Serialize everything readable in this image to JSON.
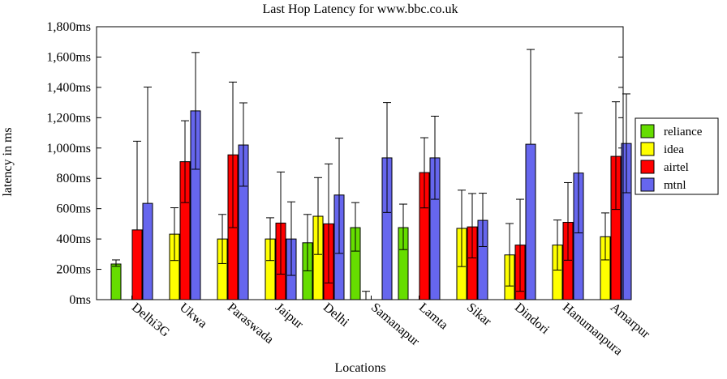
{
  "chart_data": {
    "type": "bar",
    "title": "Last Hop Latency for www.bbc.co.uk",
    "xlabel": "Locations",
    "ylabel": "latency in ms",
    "ylim": [
      0,
      1800
    ],
    "yticks": [
      "0ms",
      "200ms",
      "400ms",
      "600ms",
      "800ms",
      "1,000ms",
      "1,200ms",
      "1,400ms",
      "1,600ms",
      "1,800ms"
    ],
    "ytick_values": [
      0,
      200,
      400,
      600,
      800,
      1000,
      1200,
      1400,
      1600,
      1800
    ],
    "legend_position": "right",
    "categories": [
      "Delhi3G",
      "Ukwa",
      "Paraswada",
      "Jaipur",
      "Delhi",
      "Samanapur",
      "Lamta",
      "Sikar",
      "Dindori",
      "Hanumanpura",
      "Amarpur"
    ],
    "series": [
      {
        "name": "reliance",
        "color": "#66dd00",
        "values": [
          235,
          null,
          null,
          null,
          375,
          475,
          475,
          null,
          null,
          null,
          null
        ],
        "err_low": [
          220,
          null,
          null,
          null,
          190,
          320,
          330,
          null,
          null,
          null,
          null
        ],
        "err_high": [
          262,
          null,
          null,
          null,
          562,
          640,
          630,
          null,
          null,
          null,
          null
        ]
      },
      {
        "name": "idea",
        "color": "#ffff00",
        "values": [
          null,
          432,
          400,
          400,
          550,
          0,
          null,
          470,
          295,
          360,
          415
        ],
        "err_low": [
          null,
          258,
          238,
          258,
          298,
          0,
          null,
          218,
          90,
          195,
          262
        ],
        "err_high": [
          null,
          606,
          562,
          540,
          805,
          55,
          null,
          722,
          502,
          525,
          572
        ]
      },
      {
        "name": "airtel",
        "color": "#ff0000",
        "values": [
          460,
          910,
          955,
          505,
          500,
          null,
          838,
          480,
          360,
          510,
          945
        ],
        "err_low": [
          null,
          640,
          475,
          168,
          110,
          null,
          605,
          275,
          55,
          260,
          595
        ],
        "err_high": [
          1045,
          1180,
          1435,
          842,
          895,
          null,
          1068,
          700,
          662,
          772,
          1305
        ]
      },
      {
        "name": "mtnl",
        "color": "#6666ee",
        "values": [
          635,
          1245,
          1020,
          400,
          690,
          935,
          935,
          523,
          1025,
          835,
          1030
        ],
        "err_low": [
          null,
          860,
          748,
          160,
          305,
          575,
          662,
          350,
          null,
          440,
          705
        ],
        "err_high": [
          1402,
          1630,
          1298,
          645,
          1065,
          1300,
          1210,
          702,
          1650,
          1230,
          1357
        ]
      }
    ]
  }
}
